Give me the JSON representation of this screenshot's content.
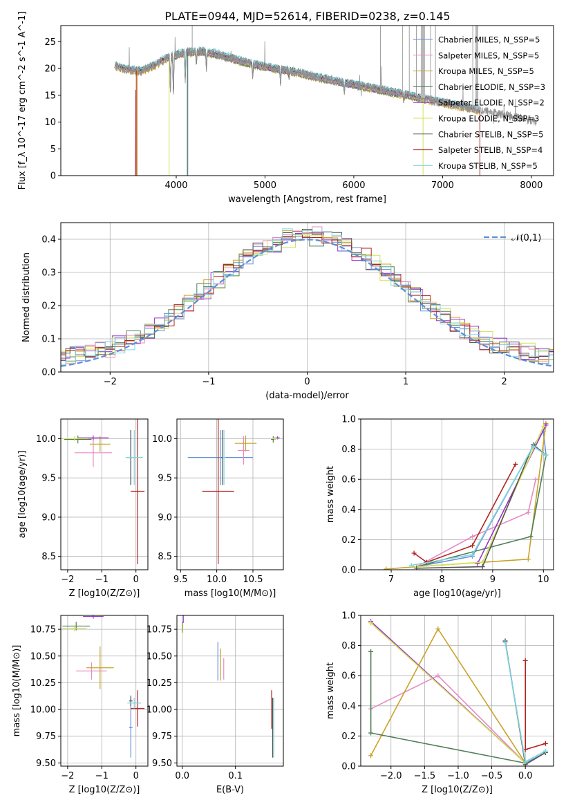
{
  "figure": {
    "title": "PLATE=0944, MJD=52614, FIBERID=0238, z=0.145"
  },
  "colors": {
    "chabrier_miles": "#6a8fd6",
    "salpeter_miles": "#e78ac3",
    "kroupa_miles": "#c9a227",
    "chabrier_elodie": "#4f7f56",
    "salpeter_elodie": "#9932cc",
    "kroupa_elodie": "#d4e157",
    "chabrier_stelib": "#555555",
    "salpeter_stelib": "#b22222",
    "kroupa_stelib": "#7fd6dc",
    "data": "#909090",
    "gauss": "#5b8fd9"
  },
  "chart_data": [
    {
      "id": "spectrum",
      "type": "line",
      "xlabel": "wavelength [Angstrom, rest frame]",
      "ylabel": "Flux [f_λ 10^-17 erg cm^-2 s^-1 A^-1]",
      "xlim": [
        2700,
        8250
      ],
      "ylim": [
        0,
        28
      ],
      "xticks": [
        4000,
        5000,
        6000,
        7000,
        8000
      ],
      "yticks": [
        0,
        5,
        10,
        15,
        20,
        25
      ],
      "legend_position": "top-right",
      "legend": [
        {
          "label": "Chabrier MILES, N_SSP=5",
          "color_key": "chabrier_miles"
        },
        {
          "label": "Salpeter MILES, N_SSP=5",
          "color_key": "salpeter_miles"
        },
        {
          "label": "Kroupa MILES, N_SSP=5",
          "color_key": "kroupa_miles"
        },
        {
          "label": "Chabrier ELODIE, N_SSP=3",
          "color_key": "chabrier_elodie"
        },
        {
          "label": "Salpeter ELODIE, N_SSP=2",
          "color_key": "salpeter_elodie"
        },
        {
          "label": "Kroupa ELODIE, N_SSP=3",
          "color_key": "kroupa_elodie"
        },
        {
          "label": "Chabrier STELIB, N_SSP=5",
          "color_key": "chabrier_stelib"
        },
        {
          "label": "Salpeter STELIB, N_SSP=4",
          "color_key": "salpeter_stelib"
        },
        {
          "label": "Kroupa STELIB, N_SSP=5",
          "color_key": "kroupa_stelib"
        }
      ],
      "continuum": [
        [
          3300,
          20.5
        ],
        [
          3450,
          19.8
        ],
        [
          3600,
          19.5
        ],
        [
          3750,
          20.5
        ],
        [
          3900,
          22
        ],
        [
          4100,
          23
        ],
        [
          4300,
          23.2
        ],
        [
          4500,
          22.5
        ],
        [
          4700,
          21.5
        ],
        [
          5000,
          20.3
        ],
        [
          5300,
          19.5
        ],
        [
          5600,
          18.3
        ],
        [
          6000,
          17.0
        ],
        [
          6400,
          15.7
        ],
        [
          6700,
          14.7
        ],
        [
          7000,
          13.6
        ],
        [
          7400,
          12.3
        ],
        [
          7800,
          11.0
        ],
        [
          8050,
          10.2
        ]
      ],
      "absorption_features": [
        [
          3934,
          6
        ],
        [
          3968,
          7
        ],
        [
          4101,
          5
        ],
        [
          4227,
          2
        ],
        [
          4340,
          3
        ],
        [
          4861,
          2
        ],
        [
          5175,
          2.5
        ],
        [
          5270,
          1
        ],
        [
          5893,
          1.5
        ],
        [
          6563,
          1
        ]
      ]
    },
    {
      "id": "residuals",
      "type": "line",
      "xlabel": "(data-model)/error",
      "ylabel": "Normed distribution",
      "xlim": [
        -2.5,
        2.5
      ],
      "ylim": [
        0,
        0.45
      ],
      "xticks": [
        -2,
        -1,
        0,
        1,
        2
      ],
      "yticks": [
        0.0,
        0.1,
        0.2,
        0.3,
        0.4
      ],
      "legend": [
        {
          "label": "𝒩(0,1)",
          "color_key": "gauss"
        }
      ],
      "legend_position": "top-right",
      "grid": true
    },
    {
      "id": "age_vs_Z",
      "type": "scatter",
      "xlabel": "Z [log10(Z/Z⊙)]",
      "ylabel": "age [log10(age/yr)]",
      "xlim": [
        -2.2,
        0.35
      ],
      "ylim": [
        8.33,
        10.25
      ],
      "xticks": [
        -2,
        -1,
        0
      ],
      "yticks": [
        8.5,
        9.0,
        9.5,
        10.0
      ],
      "grid": true,
      "points": [
        {
          "key": "chabrier_miles",
          "x": -0.15,
          "y": 9.76,
          "xerr": 0.15,
          "yerr": 0.35
        },
        {
          "key": "salpeter_miles",
          "x": -1.25,
          "y": 9.82,
          "xerr": 0.55,
          "yerr": 0.18
        },
        {
          "key": "kroupa_miles",
          "x": -1.05,
          "y": 9.93,
          "xerr": 0.3,
          "yerr": 0.1
        },
        {
          "key": "chabrier_elodie",
          "x": -1.7,
          "y": 9.99,
          "xerr": 0.4,
          "yerr": 0.05
        },
        {
          "key": "salpeter_elodie",
          "x": -1.25,
          "y": 10.01,
          "xerr": 0.45,
          "yerr": 0.03
        },
        {
          "key": "kroupa_elodie",
          "x": -1.8,
          "y": 10.0,
          "xerr": 0.4,
          "yerr": 0.03
        },
        {
          "key": "chabrier_stelib",
          "x": -0.15,
          "y": 9.76,
          "xerr": 0.05,
          "yerr": 0.35
        },
        {
          "key": "salpeter_stelib",
          "x": 0.05,
          "y": 9.33,
          "xerr": 0.2,
          "yerr": 0.93
        },
        {
          "key": "kroupa_stelib",
          "x": -0.05,
          "y": 9.76,
          "xerr": 0.25,
          "yerr": 0.35
        }
      ]
    },
    {
      "id": "age_vs_mass",
      "type": "scatter",
      "xlabel": "mass [log10(M/M⊙)]",
      "ylabel": "",
      "xlim": [
        9.45,
        10.92
      ],
      "ylim": [
        8.33,
        10.25
      ],
      "xticks": [
        9.5,
        10.0,
        10.5
      ],
      "yticks": [
        8.5,
        9.0,
        9.5,
        10.0
      ],
      "grid": true,
      "points": [
        {
          "key": "chabrier_miles",
          "x": 10.05,
          "y": 9.76,
          "xerr": 0.45,
          "yerr": 0.35
        },
        {
          "key": "salpeter_miles",
          "x": 10.37,
          "y": 9.85,
          "xerr": 0.08,
          "yerr": 0.18
        },
        {
          "key": "kroupa_miles",
          "x": 10.4,
          "y": 9.94,
          "xerr": 0.15,
          "yerr": 0.1
        },
        {
          "key": "chabrier_elodie",
          "x": 10.78,
          "y": 9.99,
          "xerr": 0.03,
          "yerr": 0.04
        },
        {
          "key": "salpeter_elodie",
          "x": 10.84,
          "y": 10.01,
          "xerr": 0.03,
          "yerr": 0.02
        },
        {
          "key": "kroupa_elodie",
          "x": 10.8,
          "y": 10.0,
          "xerr": 0.04,
          "yerr": 0.02
        },
        {
          "key": "chabrier_stelib",
          "x": 10.08,
          "y": 9.76,
          "xerr": 0.02,
          "yerr": 0.35
        },
        {
          "key": "salpeter_stelib",
          "x": 10.02,
          "y": 9.33,
          "xerr": 0.22,
          "yerr": 0.93
        },
        {
          "key": "kroupa_stelib",
          "x": 10.1,
          "y": 9.76,
          "xerr": 0.02,
          "yerr": 0.35
        }
      ]
    },
    {
      "id": "weight_vs_age",
      "type": "line",
      "xlabel": "age [log10(age/yr)]",
      "ylabel": "mass weight",
      "xlim": [
        6.4,
        10.2
      ],
      "ylim": [
        0,
        1
      ],
      "xticks": [
        7,
        8,
        9,
        10
      ],
      "yticks": [
        0.0,
        0.2,
        0.4,
        0.6,
        0.8,
        1.0
      ],
      "grid": true,
      "series": [
        {
          "key": "chabrier_miles",
          "x": [
            7.5,
            8.6,
            9.8,
            10.0,
            10.05
          ],
          "y": [
            0.02,
            0.09,
            0.82,
            0.92,
            0.76
          ]
        },
        {
          "key": "salpeter_miles",
          "x": [
            7.5,
            8.6,
            9.7,
            9.85
          ],
          "y": [
            0.02,
            0.22,
            0.38,
            0.6
          ]
        },
        {
          "key": "kroupa_miles",
          "x": [
            6.9,
            7.5,
            9.7,
            10.05
          ],
          "y": [
            0.005,
            0.02,
            0.07,
            0.97
          ]
        },
        {
          "key": "chabrier_elodie",
          "x": [
            7.5,
            9.75,
            10.05
          ],
          "y": [
            0.02,
            0.22,
            0.76
          ]
        },
        {
          "key": "salpeter_elodie",
          "x": [
            8.7,
            10.05
          ],
          "y": [
            0.04,
            0.96
          ]
        },
        {
          "key": "kroupa_elodie",
          "x": [
            7.5,
            8.8,
            10.0
          ],
          "y": [
            0.02,
            0.05,
            0.95
          ]
        },
        {
          "key": "chabrier_stelib",
          "x": [
            7.5,
            8.8,
            9.8,
            10.05
          ],
          "y": [
            0.01,
            0.02,
            0.83,
            0.76
          ]
        },
        {
          "key": "salpeter_stelib",
          "x": [
            7.45,
            7.7,
            8.6,
            9.45
          ],
          "y": [
            0.11,
            0.05,
            0.16,
            0.7
          ]
        },
        {
          "key": "kroupa_stelib",
          "x": [
            7.4,
            8.6,
            9.8,
            10.05
          ],
          "y": [
            0.03,
            0.1,
            0.82,
            0.76
          ]
        }
      ]
    },
    {
      "id": "mass_vs_Z",
      "type": "scatter",
      "xlabel": "Z [log10(Z/Z⊙)]",
      "ylabel": "mass [log10(M/M⊙)]",
      "xlim": [
        -2.2,
        0.35
      ],
      "ylim": [
        9.47,
        10.88
      ],
      "xticks": [
        -2,
        -1,
        0
      ],
      "yticks": [
        9.5,
        9.75,
        10.0,
        10.25,
        10.5,
        10.75
      ],
      "grid": true,
      "points": [
        {
          "key": "chabrier_miles",
          "x": -0.15,
          "y": 9.83,
          "xerr": 0.05,
          "yerr": 0.28
        },
        {
          "key": "salpeter_miles",
          "x": -1.3,
          "y": 10.36,
          "xerr": 0.45,
          "yerr": 0.08
        },
        {
          "key": "kroupa_miles",
          "x": -1.05,
          "y": 10.39,
          "xerr": 0.4,
          "yerr": 0.2
        },
        {
          "key": "chabrier_elodie",
          "x": -1.75,
          "y": 10.78,
          "xerr": 0.4,
          "yerr": 0.04
        },
        {
          "key": "salpeter_elodie",
          "x": -1.25,
          "y": 10.87,
          "xerr": 0.3,
          "yerr": 0.02
        },
        {
          "key": "kroupa_elodie",
          "x": -1.8,
          "y": 10.76,
          "xerr": 0.35,
          "yerr": 0.03
        },
        {
          "key": "chabrier_stelib",
          "x": -0.15,
          "y": 10.08,
          "xerr": 0.05,
          "yerr": 0.05
        },
        {
          "key": "salpeter_stelib",
          "x": 0.05,
          "y": 10.01,
          "xerr": 0.2,
          "yerr": 0.17
        },
        {
          "key": "kroupa_stelib",
          "x": -0.05,
          "y": 10.06,
          "xerr": 0.2,
          "yerr": 0.05
        }
      ]
    },
    {
      "id": "mass_vs_ebv",
      "type": "scatter",
      "xlabel": "E(B-V)",
      "ylabel": "",
      "xlim": [
        -0.01,
        0.19
      ],
      "ylim": [
        9.47,
        10.88
      ],
      "xticks": [
        0.0,
        0.1
      ],
      "yticks": [
        9.5,
        9.75,
        10.0,
        10.25,
        10.5,
        10.75
      ],
      "grid": true,
      "points": [
        {
          "key": "chabrier_miles",
          "x": 0.067,
          "y": 10.45,
          "yerr": 0.18
        },
        {
          "key": "salpeter_miles",
          "x": 0.078,
          "y": 10.38,
          "yerr": 0.1
        },
        {
          "key": "kroupa_miles",
          "x": 0.072,
          "y": 10.42,
          "yerr": 0.15
        },
        {
          "key": "chabrier_elodie",
          "x": 0.0,
          "y": 10.77,
          "yerr": 0.05
        },
        {
          "key": "salpeter_elodie",
          "x": 0.002,
          "y": 10.85,
          "yerr": 0.04
        },
        {
          "key": "kroupa_elodie",
          "x": 0.001,
          "y": 10.76,
          "yerr": 0.04
        },
        {
          "key": "chabrier_stelib",
          "x": 0.17,
          "y": 9.83,
          "yerr": 0.28
        },
        {
          "key": "salpeter_stelib",
          "x": 0.168,
          "y": 10.0,
          "yerr": 0.18
        },
        {
          "key": "kroupa_stelib",
          "x": 0.172,
          "y": 9.83,
          "yerr": 0.28
        }
      ]
    },
    {
      "id": "weight_vs_Z",
      "type": "line",
      "xlabel": "Z [log10(Z/Z⊙)]",
      "ylabel": "mass weight",
      "xlim": [
        -2.45,
        0.42
      ],
      "ylim": [
        0,
        1
      ],
      "xticks": [
        -2.0,
        -1.5,
        -1.0,
        -0.5,
        0.0
      ],
      "yticks": [
        0.0,
        0.2,
        0.4,
        0.6,
        0.8,
        1.0
      ],
      "grid": true,
      "series": [
        {
          "key": "chabrier_miles",
          "x": [
            -0.3,
            0.0,
            0.3
          ],
          "y": [
            0.83,
            0.02,
            0.09
          ]
        },
        {
          "key": "salpeter_miles",
          "x": [
            -2.3,
            -1.3,
            0.0
          ],
          "y": [
            0.38,
            0.6,
            0.02
          ]
        },
        {
          "key": "kroupa_miles",
          "x": [
            -2.3,
            -1.3,
            0.0
          ],
          "y": [
            0.07,
            0.91,
            0.02
          ]
        },
        {
          "key": "chabrier_elodie",
          "x": [
            -2.3,
            -2.3,
            0.0
          ],
          "y": [
            0.76,
            0.22,
            0.02
          ]
        },
        {
          "key": "salpeter_elodie",
          "x": [
            -2.3,
            0.0
          ],
          "y": [
            0.96,
            0.02
          ]
        },
        {
          "key": "kroupa_elodie",
          "x": [
            -2.3,
            0.0
          ],
          "y": [
            0.95,
            0.02
          ]
        },
        {
          "key": "chabrier_stelib",
          "x": [
            -0.3,
            0.0,
            0.3
          ],
          "y": [
            0.83,
            0.01,
            0.09
          ]
        },
        {
          "key": "salpeter_stelib",
          "x": [
            0.0,
            0.0,
            0.3
          ],
          "y": [
            0.7,
            0.11,
            0.15
          ]
        },
        {
          "key": "kroupa_stelib",
          "x": [
            -0.3,
            0.0,
            0.3
          ],
          "y": [
            0.82,
            0.03,
            0.1
          ]
        }
      ]
    }
  ]
}
